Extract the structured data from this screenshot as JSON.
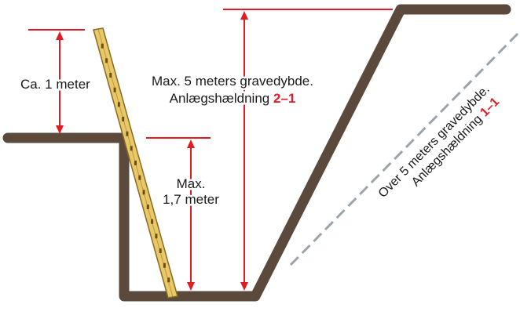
{
  "labels": {
    "ca_1_meter": "Ca. 1 meter",
    "max_17_line1": "Max.",
    "max_17_line2": "1,7 meter",
    "max5_line1": "Max. 5 meters gravedybde.",
    "max5_line2_prefix": "Anlægshældning ",
    "max5_ratio": "2–1",
    "over5_line1": "Over 5 meters gravedybde.",
    "over5_line2_prefix": "Anlægshældning ",
    "over5_ratio": "1–1"
  },
  "colors": {
    "soil": "#5b4a3c",
    "dimension_red": "#e01b24",
    "ladder_yellow": "#e8c868",
    "ladder_outline": "#8c6a1f",
    "dashed_line": "#9aa3ab",
    "text": "#1a1a1a"
  }
}
